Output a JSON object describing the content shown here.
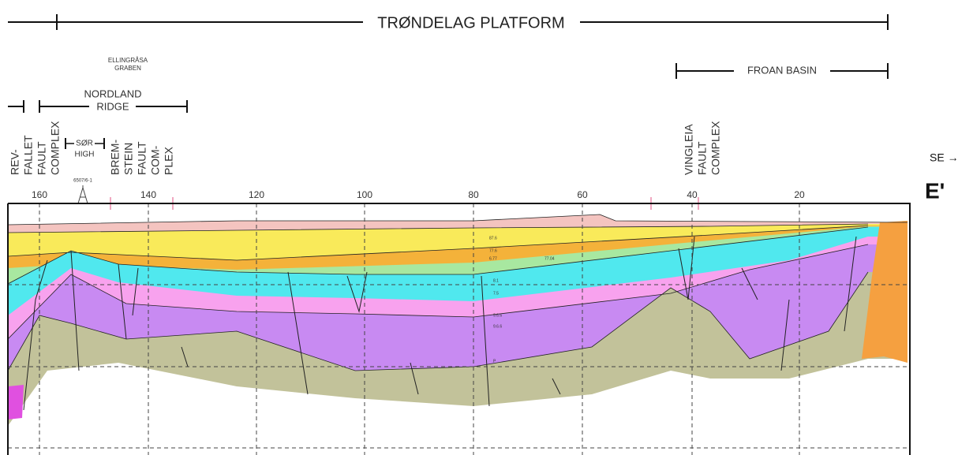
{
  "header": {
    "title": "TRØNDELAG PLATFORM"
  },
  "labels": {
    "graben": [
      "ELLINGRÅSA",
      "GRABEN"
    ],
    "froan": "FROAN BASIN",
    "nordland": [
      "NORDLAND",
      "RIDGE"
    ],
    "rev_fallet": [
      "REV-",
      "FALLET",
      "FAULT",
      "COMPLEX"
    ],
    "sor_high": [
      "SØR",
      "HIGH"
    ],
    "well": "6507/6-1",
    "bremstein": [
      "BREM-",
      "STEIN",
      "FAULT",
      "COM-",
      "PLEX"
    ],
    "vingleia": [
      "VINGLEIA",
      "FAULT",
      "COMPLEX"
    ],
    "direction": "SE →",
    "section_end": "E'"
  },
  "distance_ticks": [
    160,
    140,
    120,
    100,
    80,
    60,
    40,
    20
  ],
  "horizon_labels": [
    "87.6",
    "77.6",
    "6.77",
    "77.04",
    "8.1",
    "7.5",
    "9.6.6",
    "9.6.6",
    "P"
  ]
}
